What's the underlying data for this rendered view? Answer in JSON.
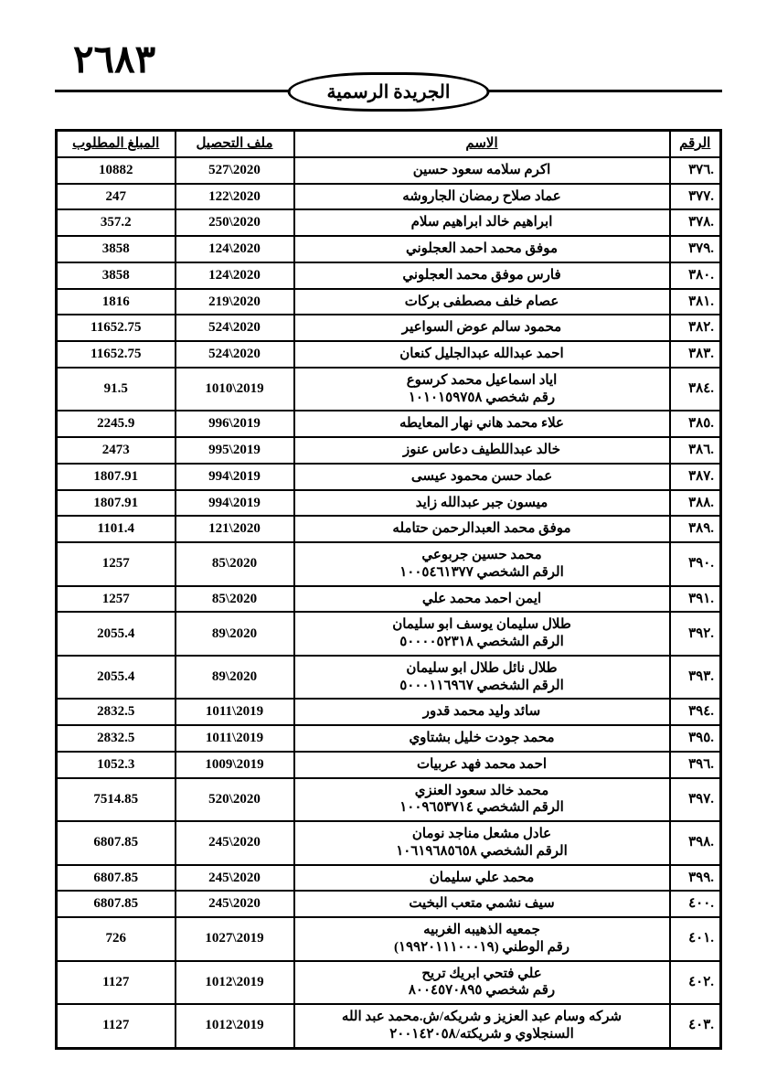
{
  "page_number": "٢٦٨٣",
  "gazette_title": "الجريدة الرسمية",
  "columns": {
    "num": "الرقم",
    "name": "الاسم",
    "file": "ملف التحصيل",
    "amount": "المبلغ المطلوب"
  },
  "rows": [
    {
      "num": ".٣٧٦",
      "name": "اكرم سلامه سعود حسين",
      "file": "527\\2020",
      "amount": "10882"
    },
    {
      "num": ".٣٧٧",
      "name": "عماد صلاح رمضان الجاروشه",
      "file": "122\\2020",
      "amount": "247"
    },
    {
      "num": ".٣٧٨",
      "name": "ابراهيم خالد ابراهيم سلام",
      "file": "250\\2020",
      "amount": "357.2"
    },
    {
      "num": ".٣٧٩",
      "name": "موفق محمد احمد العجلوني",
      "file": "124\\2020",
      "amount": "3858"
    },
    {
      "num": ".٣٨٠",
      "name": "فارس موفق محمد العجلوني",
      "file": "124\\2020",
      "amount": "3858"
    },
    {
      "num": ".٣٨١",
      "name": "عصام خلف مصطفى بركات",
      "file": "219\\2020",
      "amount": "1816"
    },
    {
      "num": ".٣٨٢",
      "name": "محمود سالم عوض السواعير",
      "file": "524\\2020",
      "amount": "11652.75"
    },
    {
      "num": ".٣٨٣",
      "name": "احمد عبدالله عبدالجليل كنعان",
      "file": "524\\2020",
      "amount": "11652.75"
    },
    {
      "num": ".٣٨٤",
      "name": "اياد اسماعيل محمد كرسوع",
      "sub": "رقم شخصي ١٠١٠١٥٩٧٥٨",
      "file": "1010\\2019",
      "amount": "91.5"
    },
    {
      "num": ".٣٨٥",
      "name": "علاء محمد هاني نهار المعايطه",
      "file": "996\\2019",
      "amount": "2245.9"
    },
    {
      "num": ".٣٨٦",
      "name": "خالد عبداللطيف دعاس عنوز",
      "file": "995\\2019",
      "amount": "2473"
    },
    {
      "num": ".٣٨٧",
      "name": "عماد حسن محمود عيسى",
      "file": "994\\2019",
      "amount": "1807.91"
    },
    {
      "num": ".٣٨٨",
      "name": "ميسون جبر عبدالله زايد",
      "file": "994\\2019",
      "amount": "1807.91"
    },
    {
      "num": ".٣٨٩",
      "name": "موفق محمد العبدالرحمن حتامله",
      "file": "121\\2020",
      "amount": "1101.4"
    },
    {
      "num": ".٣٩٠",
      "name": "محمد حسين جربوعي",
      "sub": "الرقم الشخصي ١٠٠٥٤٦١٣٧٧",
      "file": "85\\2020",
      "amount": "1257"
    },
    {
      "num": ".٣٩١",
      "name": "ايمن احمد محمد علي",
      "file": "85\\2020",
      "amount": "1257"
    },
    {
      "num": ".٣٩٢",
      "name": "طلال سليمان يوسف ابو سليمان",
      "sub": "الرقم الشخصي ٥٠٠٠٠٥٢٣١٨",
      "file": "89\\2020",
      "amount": "2055.4"
    },
    {
      "num": ".٣٩٣",
      "name": "طلال نائل طلال ابو سليمان",
      "sub": "الرقم الشخصي ٥٠٠٠١١٦٩٦٧",
      "file": "89\\2020",
      "amount": "2055.4"
    },
    {
      "num": ".٣٩٤",
      "name": "سائد وليد محمد قدور",
      "file": "1011\\2019",
      "amount": "2832.5"
    },
    {
      "num": ".٣٩٥",
      "name": "محمد جودت خليل بشتاوي",
      "file": "1011\\2019",
      "amount": "2832.5"
    },
    {
      "num": ".٣٩٦",
      "name": "احمد محمد فهد عربيات",
      "file": "1009\\2019",
      "amount": "1052.3"
    },
    {
      "num": ".٣٩٧",
      "name": "محمد خالد سعود العنزي",
      "sub": "الرقم الشخصي ١٠٠٩٦٥٣٧١٤",
      "file": "520\\2020",
      "amount": "7514.85"
    },
    {
      "num": ".٣٩٨",
      "name": "عادل مشعل مناجد نومان",
      "sub": "الرقم الشخصي ١٠٦١٩٦٨٥٦٥٨",
      "file": "245\\2020",
      "amount": "6807.85"
    },
    {
      "num": ".٣٩٩",
      "name": "محمد علي سليمان",
      "file": "245\\2020",
      "amount": "6807.85"
    },
    {
      "num": ".٤٠٠",
      "name": "سيف نشمي متعب البخيت",
      "file": "245\\2020",
      "amount": "6807.85"
    },
    {
      "num": ".٤٠١",
      "name": "جمعيه الذهيبه الغربيه",
      "sub": "رقم الوطني (١٩٩٢٠١١١٠٠٠١٩)",
      "file": "1027\\2019",
      "amount": "726"
    },
    {
      "num": ".٤٠٢",
      "name": "علي فتحي ابريك تريح",
      "sub": "رقم شخصي ٨٠٠٤٥٧٠٨٩٥",
      "file": "1012\\2019",
      "amount": "1127"
    },
    {
      "num": ".٤٠٣",
      "name": "شركه وسام عبد العزيز و شريكه/ش.محمد عبد الله",
      "sub": "السنجلاوي و شريكته/٢٠٠١٤٢٠٥٨",
      "file": "1012\\2019",
      "amount": "1127"
    }
  ]
}
